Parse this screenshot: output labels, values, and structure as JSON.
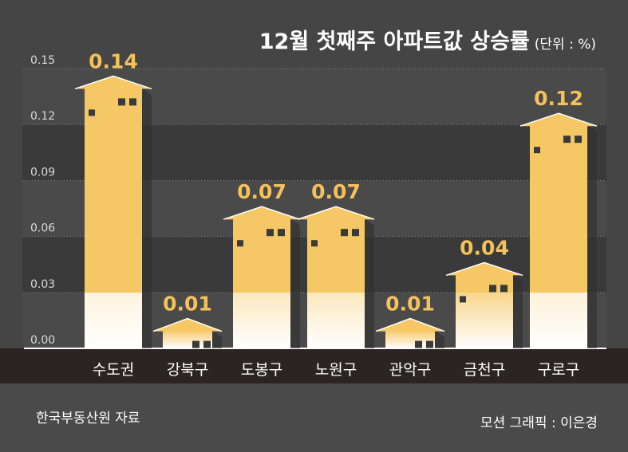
{
  "title": "12월 첫째주 아파트값 상승률",
  "unit": "(단위 : %)",
  "source": "한국부동산원 자료",
  "credit": "모션 그래픽 : 이은경",
  "colors": {
    "background": "#454545",
    "grid_band_dark": "#3a3a3a",
    "grid_band_light": "#4a4a4a",
    "bar": "#f6c765",
    "value_label": "#f5c15a",
    "baseline_band": "#2a2522",
    "text": "#ffffff"
  },
  "chart_data": {
    "type": "bar",
    "categories": [
      "수도권",
      "강북구",
      "도봉구",
      "노원구",
      "관악구",
      "금천구",
      "구로구"
    ],
    "values": [
      0.14,
      0.01,
      0.07,
      0.07,
      0.01,
      0.04,
      0.12
    ],
    "value_labels": [
      "0.14",
      "0.01",
      "0.07",
      "0.07",
      "0.01",
      "0.04",
      "0.12"
    ],
    "ylim": [
      0,
      0.15
    ],
    "yticks": [
      0,
      0.03,
      0.06,
      0.09,
      0.12,
      0.15
    ],
    "ytick_labels": [
      "0.00",
      "0.03",
      "0.06",
      "0.09",
      "0.12",
      "0.15"
    ],
    "grid": true,
    "bar_style": "house-shaped bars with a roof and windows"
  }
}
